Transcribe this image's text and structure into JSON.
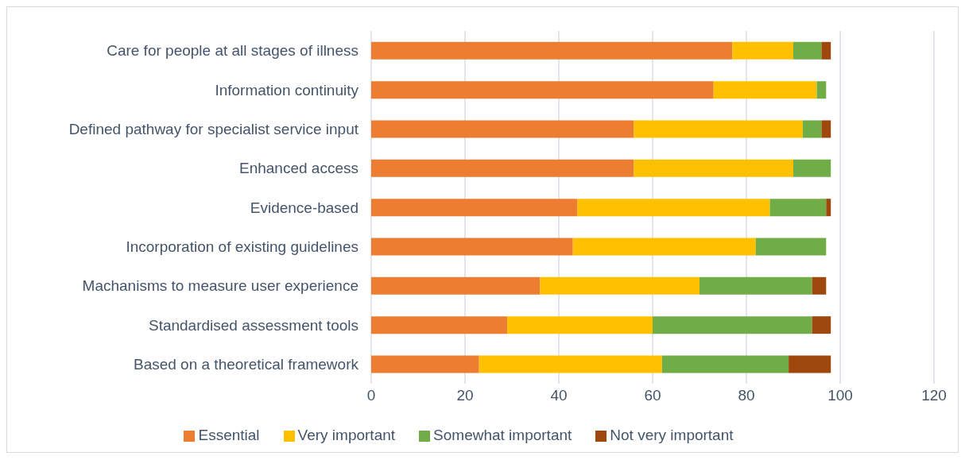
{
  "chart_data": {
    "type": "bar",
    "orientation": "horizontal",
    "stacked": true,
    "categories": [
      "Care for people at all stages of illness",
      "Information continuity",
      "Defined pathway for specialist service input",
      "Enhanced access",
      "Evidence-based",
      "Incorporation of existing guidelines",
      "Machanisms to measure user experience",
      "Standardised assessment tools",
      "Based on a theoretical framework"
    ],
    "series": [
      {
        "name": "Essential",
        "color": "#ed7d31",
        "values": [
          77,
          73,
          56,
          56,
          44,
          43,
          36,
          29,
          23
        ]
      },
      {
        "name": "Very important",
        "color": "#ffc000",
        "values": [
          13,
          22,
          36,
          34,
          41,
          39,
          34,
          31,
          39
        ]
      },
      {
        "name": "Somewhat important",
        "color": "#70ad47",
        "values": [
          6,
          2,
          4,
          8,
          12,
          15,
          24,
          34,
          27
        ]
      },
      {
        "name": "Not very important",
        "color": "#9e480e",
        "values": [
          2,
          null,
          2,
          null,
          1,
          null,
          3,
          4,
          9
        ]
      }
    ],
    "xlim": [
      0,
      120
    ],
    "xticks": [
      0,
      20,
      40,
      60,
      80,
      100,
      120
    ],
    "grid": "x",
    "legend": "bottom"
  }
}
